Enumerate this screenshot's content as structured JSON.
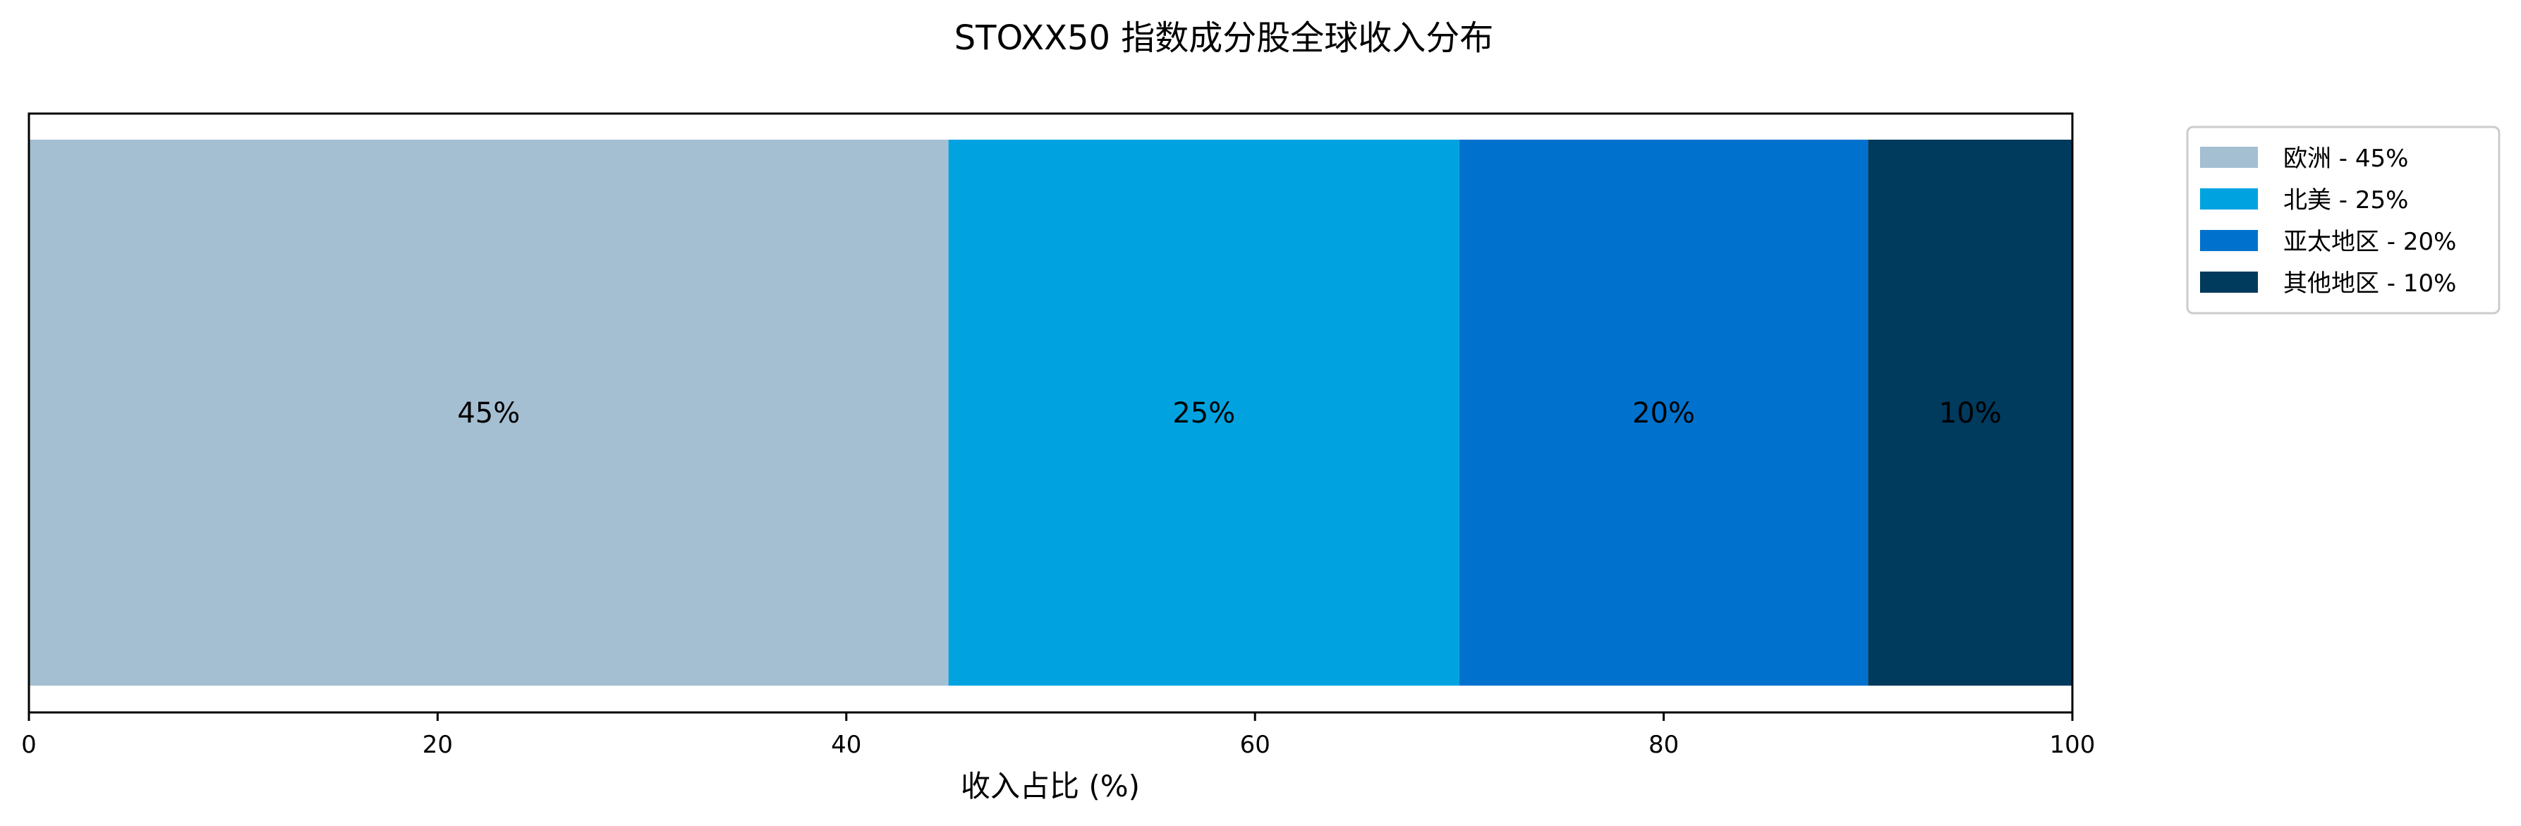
{
  "chart_data": {
    "type": "bar",
    "orientation": "horizontal",
    "stacked": true,
    "title": "STOXX50 指数成分股全球收入分布",
    "xlabel": "收入占比 (%)",
    "ylabel": "",
    "xlim": [
      0,
      100
    ],
    "xticks": [
      0,
      20,
      40,
      60,
      80,
      100
    ],
    "grid": false,
    "legend_position": "outside-top-right",
    "series": [
      {
        "name": "欧洲 - 45%",
        "value": 45,
        "label": "45%",
        "color": "#A5BFD2"
      },
      {
        "name": "北美 - 25%",
        "value": 25,
        "label": "25%",
        "color": "#00A3E0"
      },
      {
        "name": "亚太地区 - 20%",
        "value": 20,
        "label": "20%",
        "color": "#0072CE"
      },
      {
        "name": "其他地区 - 10%",
        "value": 10,
        "label": "10%",
        "color": "#003A5D"
      }
    ]
  }
}
